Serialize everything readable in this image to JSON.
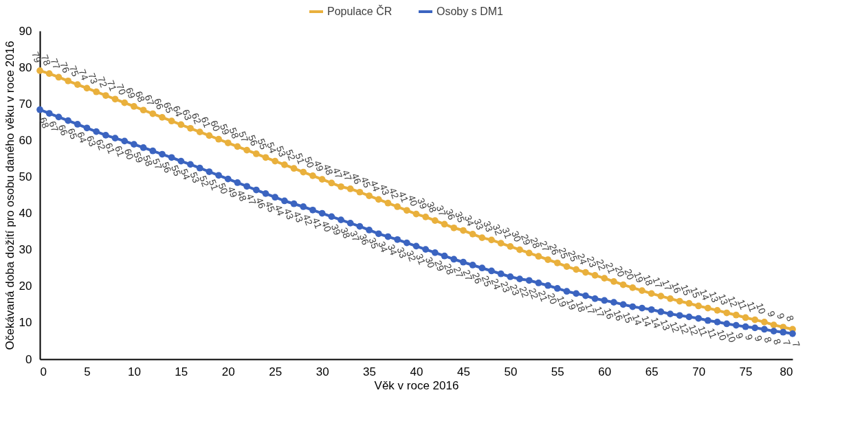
{
  "chart_data": {
    "type": "line",
    "xlabel": "Věk v roce 2016",
    "ylabel": "Očekávaná doba dožití pro osobu daného věku v roce 2016",
    "x": [
      0,
      1,
      2,
      3,
      4,
      5,
      6,
      7,
      8,
      9,
      10,
      11,
      12,
      13,
      14,
      15,
      16,
      17,
      18,
      19,
      20,
      21,
      22,
      23,
      24,
      25,
      26,
      27,
      28,
      29,
      30,
      31,
      32,
      33,
      34,
      35,
      36,
      37,
      38,
      39,
      40,
      41,
      42,
      43,
      44,
      45,
      46,
      47,
      48,
      49,
      50,
      51,
      52,
      53,
      54,
      55,
      56,
      57,
      58,
      59,
      60,
      61,
      62,
      63,
      64,
      65,
      66,
      67,
      68,
      69,
      70,
      71,
      72,
      73,
      74,
      75,
      76,
      77,
      78,
      79,
      80
    ],
    "xlim": [
      0,
      80
    ],
    "xticks": [
      0,
      5,
      10,
      15,
      20,
      25,
      30,
      35,
      40,
      45,
      50,
      55,
      60,
      65,
      70,
      75,
      80
    ],
    "ylim": [
      0,
      90
    ],
    "yticks": [
      0,
      10,
      20,
      30,
      40,
      50,
      60,
      70,
      80,
      90
    ],
    "grid": false,
    "legend": "top",
    "marker": "circle",
    "line_style": "solid",
    "series": [
      {
        "name": "Populace ČR",
        "color": "#e9b03c",
        "values": [
          79.1,
          78.3,
          77.3,
          76.3,
          75.3,
          74.3,
          73.3,
          72.3,
          71.3,
          70.3,
          69.3,
          68.3,
          67.3,
          66.3,
          65.3,
          64.3,
          63.3,
          62.3,
          61.3,
          60.3,
          59.3,
          58.3,
          57.3,
          56.3,
          55.3,
          54.3,
          53.3,
          52.3,
          51.3,
          50.3,
          49.3,
          48.3,
          47.3,
          46.7,
          45.8,
          44.8,
          43.8,
          42.8,
          41.8,
          40.8,
          39.8,
          39.0,
          38.0,
          37.0,
          36.0,
          35.3,
          34.3,
          33.3,
          32.7,
          31.8,
          30.9,
          30.0,
          29.1,
          28.2,
          27.3,
          26.4,
          25.4,
          24.6,
          23.8,
          23.0,
          22.2,
          21.3,
          20.4,
          19.6,
          18.8,
          18.0,
          17.3,
          16.6,
          15.9,
          15.3,
          14.6,
          14.0,
          13.4,
          12.7,
          12.1,
          11.4,
          10.8,
          10.2,
          9.4,
          8.8,
          8.2
        ],
        "value_labels": [
          "79",
          "78",
          "77",
          "76",
          "75",
          "74",
          "73",
          "72",
          "71",
          "70",
          "69",
          "68",
          "67",
          "66",
          "65",
          "64",
          "63",
          "62",
          "61",
          "60",
          "59",
          "58",
          "57",
          "56",
          "55",
          "54",
          "53",
          "52",
          "51",
          "50",
          "49",
          "48",
          "47",
          "47",
          "46",
          "45",
          "44",
          "43",
          "42",
          "41",
          "40",
          "39",
          "38",
          "37",
          "36",
          "35",
          "34",
          "33",
          "33",
          "32",
          "31",
          "30",
          "29",
          "28",
          "27",
          "26",
          "25",
          "25",
          "24",
          "23",
          "22",
          "21",
          "20",
          "20",
          "19",
          "18",
          "17",
          "17",
          "16",
          "15",
          "15",
          "14",
          "13",
          "13",
          "12",
          "11",
          "11",
          "10",
          "9",
          "9",
          "8"
        ]
      },
      {
        "name": "Osoby s DM1",
        "color": "#3b64c0",
        "values": [
          68.4,
          67.4,
          66.4,
          65.4,
          64.4,
          63.4,
          62.4,
          61.4,
          60.6,
          59.8,
          58.9,
          58.0,
          57.1,
          56.2,
          55.3,
          54.3,
          53.4,
          52.4,
          51.4,
          50.4,
          49.4,
          48.4,
          47.4,
          46.4,
          45.4,
          44.4,
          43.4,
          42.6,
          41.8,
          40.9,
          40.0,
          39.1,
          38.2,
          37.3,
          36.4,
          35.4,
          34.4,
          33.6,
          32.8,
          31.9,
          31.0,
          30.1,
          29.2,
          28.3,
          27.4,
          26.6,
          25.8,
          25.0,
          24.2,
          23.4,
          22.6,
          22.0,
          21.6,
          20.9,
          20.2,
          19.4,
          18.6,
          18.0,
          17.4,
          16.6,
          16.1,
          15.6,
          15.0,
          14.4,
          14.0,
          13.6,
          13.0,
          12.4,
          12.0,
          11.6,
          11.2,
          10.6,
          10.2,
          9.7,
          9.3,
          8.9,
          8.6,
          8.2,
          7.7,
          7.4,
          7.0
        ],
        "value_labels": [
          "68",
          "67",
          "66",
          "65",
          "64",
          "63",
          "62",
          "61",
          "61",
          "60",
          "59",
          "58",
          "57",
          "56",
          "55",
          "54",
          "53",
          "52",
          "51",
          "50",
          "49",
          "48",
          "47",
          "46",
          "45",
          "44",
          "43",
          "43",
          "42",
          "41",
          "40",
          "39",
          "38",
          "37",
          "36",
          "35",
          "34",
          "34",
          "33",
          "32",
          "31",
          "30",
          "29",
          "28",
          "27",
          "27",
          "26",
          "25",
          "24",
          "23",
          "23",
          "22",
          "22",
          "21",
          "20",
          "19",
          "19",
          "18",
          "17",
          "17",
          "16",
          "16",
          "15",
          "14",
          "14",
          "14",
          "13",
          "12",
          "12",
          "12",
          "11",
          "11",
          "10",
          "10",
          "9",
          "9",
          "9",
          "8",
          "8",
          "7",
          "7"
        ]
      }
    ]
  }
}
